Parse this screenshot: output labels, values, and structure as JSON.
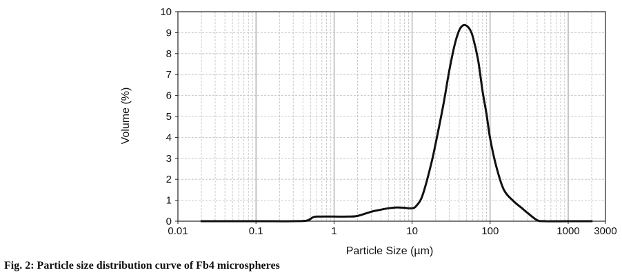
{
  "caption": "Fig. 2: Particle size distribution curve of Fb4 microspheres",
  "chart_data": {
    "type": "line",
    "title": "",
    "xlabel": "Particle Size (µm)",
    "ylabel": "Volume (%)",
    "xscale": "log",
    "xlim": [
      0.01,
      3000
    ],
    "ylim": [
      0,
      10
    ],
    "x_ticks": [
      0.01,
      0.1,
      1,
      10,
      100,
      1000,
      3000
    ],
    "x_tick_labels": [
      "0.01",
      "0.1",
      "1",
      "10",
      "100",
      "1000",
      "3000"
    ],
    "y_ticks": [
      0,
      1,
      2,
      3,
      4,
      5,
      6,
      7,
      8,
      9,
      10
    ],
    "y_tick_labels": [
      "0",
      "1",
      "2",
      "3",
      "4",
      "5",
      "6",
      "7",
      "8",
      "9",
      "10"
    ],
    "grid": true,
    "line_color": "#111111",
    "series": [
      {
        "x": [
          0.02,
          0.1,
          0.3,
          0.45,
          0.55,
          0.7,
          1,
          1.5,
          2,
          3,
          4,
          5,
          6,
          7,
          8,
          9,
          10,
          11,
          13,
          15,
          18,
          20,
          25,
          30,
          35,
          40,
          45,
          50,
          55,
          60,
          70,
          80,
          90,
          100,
          120,
          150,
          200,
          250,
          300,
          400,
          500,
          1000,
          2000
        ],
        "y": [
          0,
          0,
          0,
          0.03,
          0.2,
          0.22,
          0.22,
          0.22,
          0.25,
          0.45,
          0.55,
          0.62,
          0.65,
          0.65,
          0.64,
          0.62,
          0.62,
          0.68,
          1.05,
          1.75,
          2.9,
          3.7,
          5.5,
          7.2,
          8.4,
          9.1,
          9.35,
          9.33,
          9.15,
          8.8,
          7.7,
          6.2,
          5.1,
          3.95,
          2.6,
          1.5,
          0.95,
          0.65,
          0.4,
          0.05,
          0,
          0,
          0
        ]
      }
    ]
  }
}
